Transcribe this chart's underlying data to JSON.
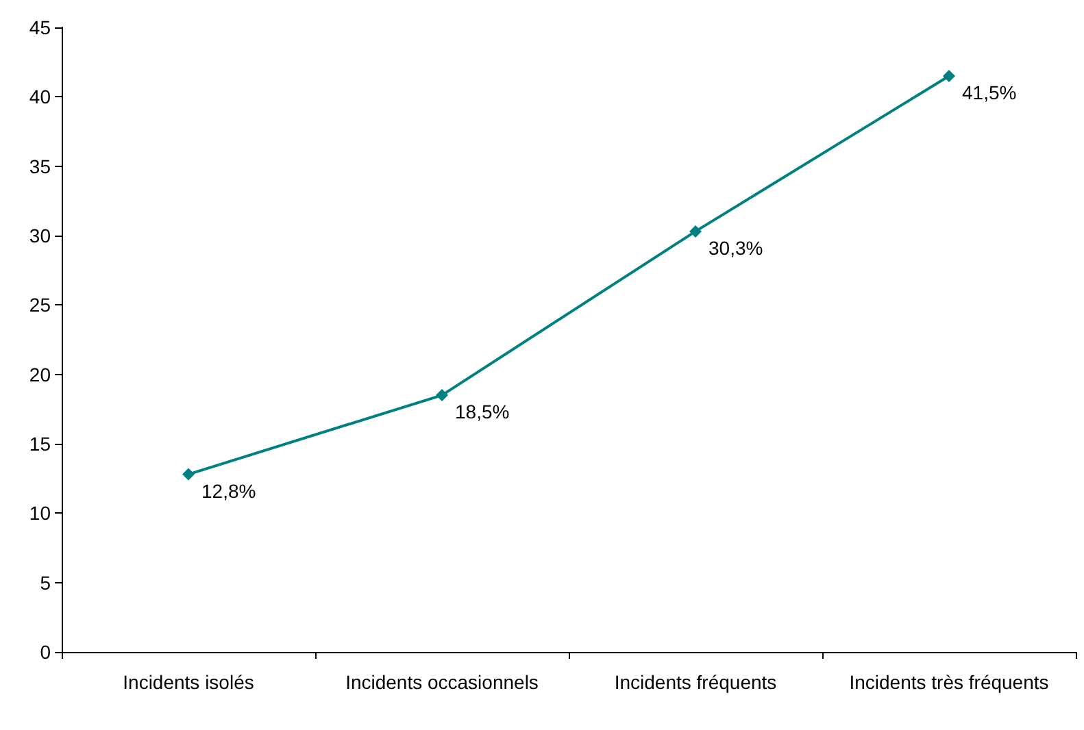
{
  "chart_data": {
    "type": "line",
    "categories": [
      "Incidents isolés",
      "Incidents occasionnels",
      "Incidents fréquents",
      "Incidents très fréquents"
    ],
    "series": [
      {
        "color": "#008080",
        "values": [
          12.8,
          18.5,
          30.3,
          41.5
        ],
        "value_labels": [
          "12,8%",
          "18,5%",
          "30,3%",
          "41,5%"
        ]
      }
    ],
    "ylim": [
      0,
      45
    ],
    "yticks": [
      0,
      5,
      10,
      15,
      20,
      25,
      30,
      35,
      40,
      45
    ],
    "grid": false,
    "marker": "diamond",
    "line_style": "solid"
  }
}
